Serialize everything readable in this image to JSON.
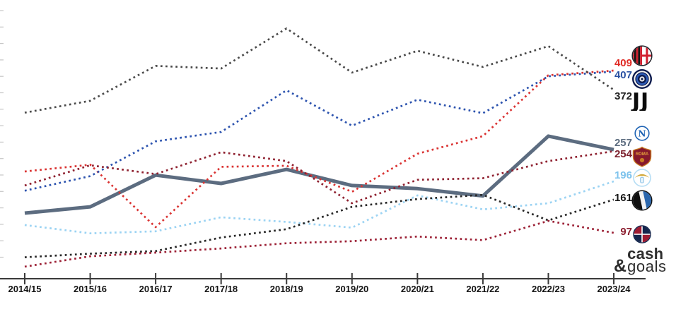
{
  "chart_data": {
    "type": "line",
    "title": "",
    "xlabel": "",
    "ylabel": "",
    "x_categories": [
      "2014/15",
      "2015/16",
      "2016/17",
      "2017/18",
      "2018/19",
      "2019/20",
      "2020/21",
      "2021/22",
      "2022/23",
      "2023/24"
    ],
    "y_axis": {
      "tick_labels_visible": false,
      "approx_range": [
        0,
        520
      ]
    },
    "legend_position": "right",
    "grid": false,
    "series": [
      {
        "id": "milan",
        "name": "AC Milan",
        "logo": "milan",
        "line_style": "dotted",
        "line_color": "#da3332",
        "label_color": "#e02b25",
        "end_value_label": "409",
        "values": [
          215,
          228,
          108,
          224,
          226,
          176,
          249,
          283,
          400,
          409
        ]
      },
      {
        "id": "inter",
        "name": "Inter",
        "logo": "inter",
        "line_style": "dotted",
        "line_color": "#2b52ae",
        "label_color": "#2b52a3",
        "end_value_label": "407",
        "values": [
          178,
          206,
          273,
          291,
          371,
          303,
          353,
          327,
          398,
          407
        ]
      },
      {
        "id": "juventus",
        "name": "Juventus",
        "logo": "juventus",
        "line_style": "dotted",
        "line_color": "#4a4a4a",
        "label_color": "#1d1d1d",
        "end_value_label": "372",
        "values": [
          328,
          351,
          418,
          413,
          490,
          405,
          447,
          416,
          456,
          372
        ]
      },
      {
        "id": "napoli",
        "name": "Napoli",
        "logo": "napoli",
        "line_style": "solid",
        "line_color": "#5c6c80",
        "label_color": "#5d6d80",
        "end_value_label": "257",
        "values": [
          135,
          147,
          208,
          192,
          219,
          188,
          182,
          168,
          283,
          257
        ]
      },
      {
        "id": "roma",
        "name": "Roma",
        "logo": "roma",
        "line_style": "dotted",
        "line_color": "#8f2130",
        "label_color": "#7c1f2c",
        "end_value_label": "254",
        "values": [
          188,
          227,
          210,
          252,
          235,
          154,
          199,
          202,
          235,
          254
        ]
      },
      {
        "id": "lazio",
        "name": "Lazio",
        "logo": "lazio",
        "line_style": "dotted",
        "line_color": "#9bd3f3",
        "label_color": "#7ec3ec",
        "end_value_label": "196",
        "values": [
          112,
          96,
          100,
          127,
          118,
          107,
          169,
          142,
          154,
          196
        ]
      },
      {
        "id": "atalanta",
        "name": "Atalanta",
        "logo": "atalanta",
        "line_style": "dotted",
        "line_color": "#282828",
        "label_color": "#161616",
        "end_value_label": "161",
        "values": [
          50,
          57,
          62,
          88,
          104,
          147,
          162,
          170,
          121,
          161
        ]
      },
      {
        "id": "bologna",
        "name": "Bologna",
        "logo": "bologna",
        "line_style": "dotted",
        "line_color": "#9c2136",
        "label_color": "#8c1f30",
        "end_value_label": "97",
        "values": [
          32,
          52,
          59,
          67,
          77,
          81,
          90,
          83,
          120,
          97
        ]
      }
    ]
  },
  "watermark": {
    "ampersand": "&",
    "line1": "cash",
    "line2": "goals"
  }
}
